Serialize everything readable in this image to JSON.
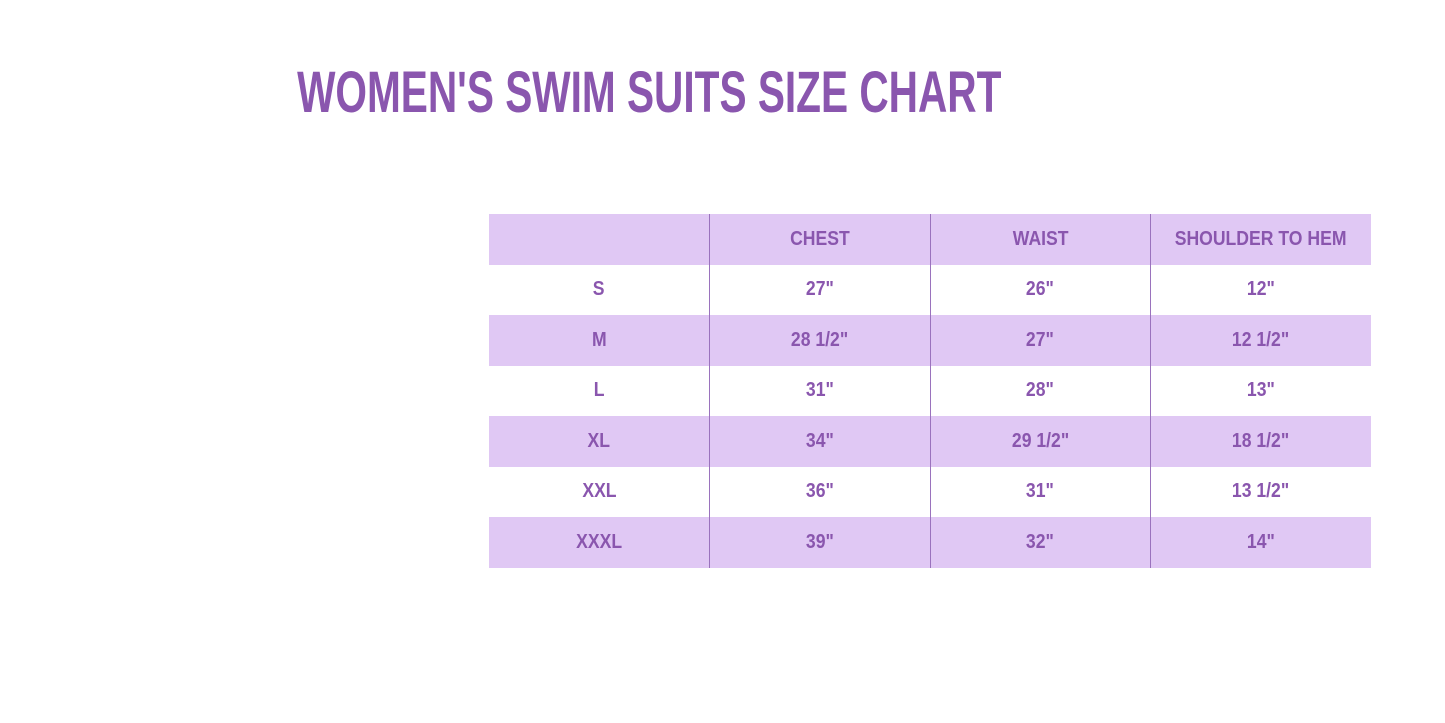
{
  "title": "WOMEN'S SWIM SUITS SIZE CHART",
  "colors": {
    "text": "#8a56ae",
    "stripe": "#e0c8f4",
    "divider": "#9a72bd"
  },
  "table": {
    "headers": [
      "",
      "CHEST",
      "WAIST",
      "SHOULDER TO HEM"
    ],
    "rows": [
      [
        "S",
        "27\"",
        "26\"",
        "12\""
      ],
      [
        "M",
        "28 1/2\"",
        "27\"",
        "12 1/2\""
      ],
      [
        "L",
        "31\"",
        "28\"",
        "13\""
      ],
      [
        "XL",
        "34\"",
        "29 1/2\"",
        "18 1/2\""
      ],
      [
        "XXL",
        "36\"",
        "31\"",
        "13 1/2\""
      ],
      [
        "XXXL",
        "39\"",
        "32\"",
        "14\""
      ]
    ]
  }
}
